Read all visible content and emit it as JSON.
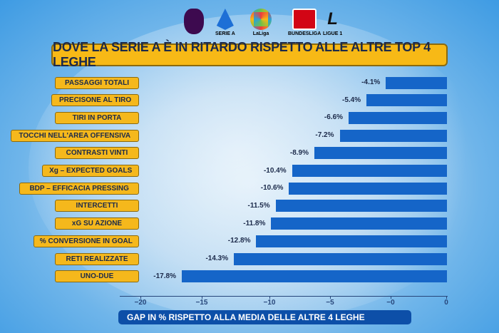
{
  "logos": [
    {
      "name": "premier-league",
      "text": "",
      "color": "#3d0a4f"
    },
    {
      "name": "serie-a",
      "text": "SERIE A",
      "color": "#1d6fd6"
    },
    {
      "name": "laliga",
      "text": "LaLiga",
      "color": "#ee3b3b"
    },
    {
      "name": "bundesliga",
      "text": "BUNDESLIGA",
      "color": "#d20515"
    },
    {
      "name": "ligue-1",
      "text": "LIGUE 1",
      "color": "#111111"
    }
  ],
  "chart_data": {
    "type": "bar",
    "orientation": "horizontal",
    "title": "DOVE LA SERIE A È IN RITARDO RISPETTO ALLE ALTRE TOP 4 LEGHE",
    "xlabel": "GAP IN % RISPETTO ALLA MEDIA DELLE ALTRE 4 LEGHE",
    "categories": [
      "PASSAGGI TOTALI",
      "PRECISONE AL TIRO",
      "TIRI IN PORTA",
      "TOCCHI NELL'AREA OFFENSIVA",
      "CONTRASTI VINTI",
      "Xg – EXPECTED GOALS",
      "BDP – EFFICACIA PRESSING",
      "INTERCETTI",
      "xG SU AZIONE",
      "% CONVERSIONE IN GOAL",
      "RETI REALIZZATE",
      "UNO-DUE"
    ],
    "values": [
      -4.1,
      -5.4,
      -6.6,
      -7.2,
      -8.9,
      -10.4,
      -10.6,
      -11.5,
      -11.8,
      -12.8,
      -14.3,
      -17.8
    ],
    "data_labels": [
      "-4.1%",
      "-5.4%",
      "-6.6%",
      "-7.2%",
      "-8.9%",
      "-10.4%",
      "-10.6%",
      "-11.5%",
      "-11.8%",
      "-12.8%",
      "-14.3%",
      "-17.8%"
    ],
    "x_tick_labels": [
      "−20",
      "−15",
      "−10",
      "−5",
      "−0",
      "0"
    ],
    "xlim": [
      -20,
      0
    ],
    "bar_color": "#1565c8",
    "label_color": "#f5b81c",
    "grid": false
  }
}
